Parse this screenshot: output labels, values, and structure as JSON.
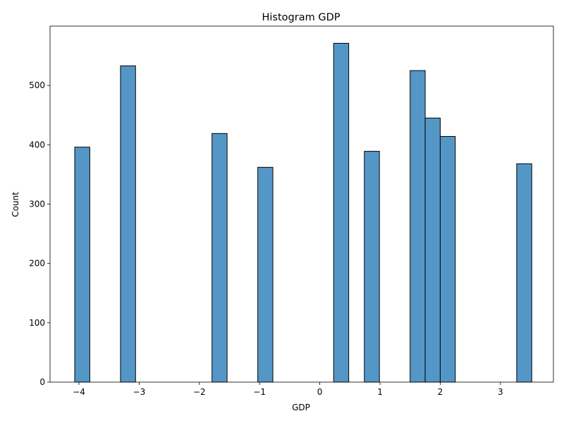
{
  "chart_data": {
    "type": "bar",
    "title": "Histogram GDP",
    "xlabel": "GDP",
    "ylabel": "Count",
    "xlim": [
      -4.48,
      3.88
    ],
    "ylim": [
      0,
      600
    ],
    "xticks": [
      -4,
      -3,
      -2,
      -1,
      0,
      1,
      2,
      3
    ],
    "xtick_labels": [
      "−4",
      "−3",
      "−2",
      "−1",
      "0",
      "1",
      "2",
      "3"
    ],
    "yticks": [
      0,
      100,
      200,
      300,
      400,
      500
    ],
    "ytick_labels": [
      "0",
      "100",
      "200",
      "300",
      "400",
      "500"
    ],
    "grid": false,
    "bar_color": "#5497c7",
    "edge_color": "#000000",
    "bins": [
      {
        "x0": -4.07,
        "x1": -3.82,
        "count": 396
      },
      {
        "x0": -3.31,
        "x1": -3.06,
        "count": 533
      },
      {
        "x0": -1.79,
        "x1": -1.54,
        "count": 419
      },
      {
        "x0": -1.03,
        "x1": -0.78,
        "count": 362
      },
      {
        "x0": 0.23,
        "x1": 0.48,
        "count": 571
      },
      {
        "x0": 0.74,
        "x1": 0.99,
        "count": 389
      },
      {
        "x0": 1.5,
        "x1": 1.75,
        "count": 525
      },
      {
        "x0": 1.75,
        "x1": 2.0,
        "count": 445
      },
      {
        "x0": 2.0,
        "x1": 2.25,
        "count": 414
      },
      {
        "x0": 3.27,
        "x1": 3.52,
        "count": 368
      }
    ]
  }
}
